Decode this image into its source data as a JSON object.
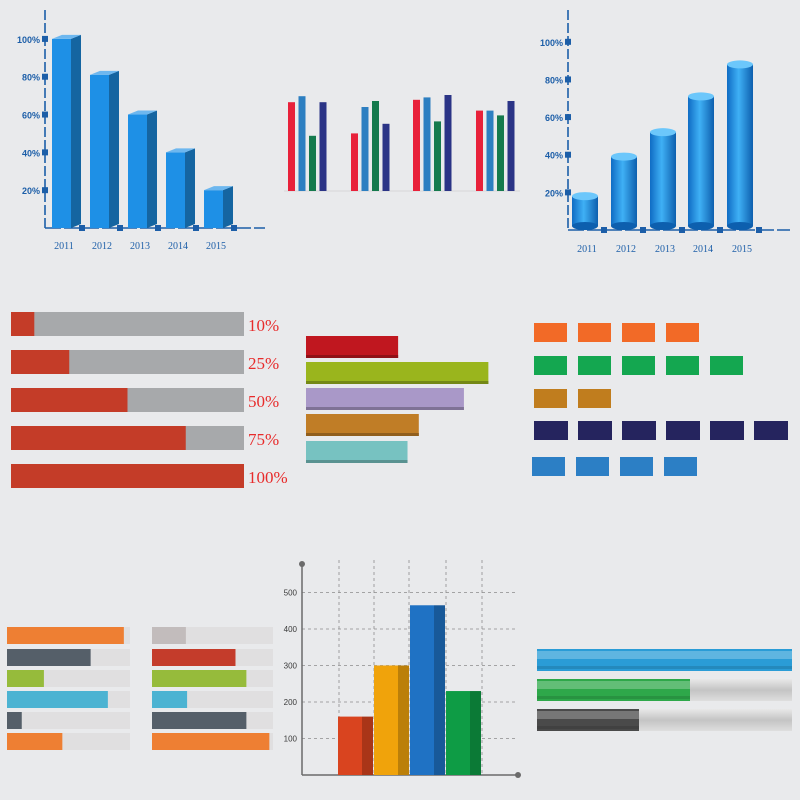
{
  "chart_data": [
    {
      "type": "bar",
      "style": "3d-box",
      "categories": [
        "2011",
        "2012",
        "2013",
        "2014",
        "2015"
      ],
      "values": [
        100,
        81,
        60,
        40,
        20
      ],
      "yticks": [
        "20%",
        "40%",
        "60%",
        "80%",
        "100%"
      ],
      "ylim": [
        0,
        110
      ],
      "color": "#1e90e6"
    },
    {
      "type": "bar",
      "style": "grouped-thin",
      "groups": 4,
      "series": [
        {
          "color": "#e8213a",
          "values": [
            74,
            48,
            76,
            67
          ]
        },
        {
          "color": "#2d7fc1",
          "values": [
            79,
            70,
            78,
            67
          ]
        },
        {
          "color": "#157a4d",
          "values": [
            46,
            75,
            58,
            63
          ]
        },
        {
          "color": "#2b3486",
          "values": [
            74,
            56,
            80,
            75
          ]
        }
      ],
      "ylim": [
        0,
        100
      ]
    },
    {
      "type": "bar",
      "style": "3d-cylinder",
      "categories": [
        "2011",
        "2012",
        "2013",
        "2014",
        "2015"
      ],
      "values": [
        18,
        39,
        52,
        71,
        88
      ],
      "yticks": [
        "20%",
        "40%",
        "60%",
        "80%",
        "100%"
      ],
      "ylim": [
        0,
        110
      ],
      "color": "#1e90e6"
    },
    {
      "type": "bar",
      "style": "progress",
      "labels": [
        "10%",
        "25%",
        "50%",
        "75%",
        "100%"
      ],
      "values": [
        10,
        25,
        50,
        75,
        100
      ],
      "fill_color": "#c43c28",
      "track_color": "#a7a9ab",
      "label_color": "#e82b2b"
    },
    {
      "type": "bar",
      "style": "horizontal-3d",
      "values": [
        49,
        97,
        84,
        60,
        54
      ],
      "colors": [
        "#c0171f",
        "#9ab51d",
        "#a998c8",
        "#c07d26",
        "#77c2c1"
      ],
      "xlim": [
        0,
        100
      ]
    },
    {
      "type": "bar",
      "style": "pictogram",
      "series": [
        {
          "count": 4,
          "color": "#f26a27"
        },
        {
          "count": 5,
          "color": "#14a750"
        },
        {
          "count": 2,
          "color": "#c07d1e"
        },
        {
          "count": 6,
          "color": "#25245e"
        },
        {
          "count": 4,
          "color": "#2c7fc5"
        }
      ]
    },
    {
      "type": "bar",
      "style": "horizontal-with-track",
      "values": [
        95,
        68,
        30,
        82,
        12,
        45
      ],
      "colors": [
        "#ee7f33",
        "#555f69",
        "#96bb3b",
        "#4cb3d2",
        "#555f69",
        "#ee7f33"
      ],
      "xlim": [
        0,
        100
      ]
    },
    {
      "type": "bar",
      "style": "horizontal-with-track",
      "values": [
        28,
        69,
        78,
        29,
        78,
        97
      ],
      "colors": [
        "#c2bcbc",
        "#c43c2b",
        "#96bb3b",
        "#4cb3d2",
        "#555f69",
        "#ee7f33"
      ],
      "xlim": [
        0,
        100
      ]
    },
    {
      "type": "bar",
      "style": "3d-column",
      "values": [
        160,
        300,
        465,
        230
      ],
      "colors": [
        "#d9441f",
        "#f0a30b",
        "#1f72c4",
        "#0e9c45"
      ],
      "yticks": [
        "100",
        "200",
        "300",
        "400",
        "500"
      ],
      "ylim": [
        0,
        600
      ]
    },
    {
      "type": "bar",
      "style": "glossy-progress",
      "values": [
        100,
        60,
        40
      ],
      "colors": [
        "#2a9cd6",
        "#2ea84a",
        "#4a4a4a"
      ],
      "track_color": "#c9c9c9"
    }
  ]
}
